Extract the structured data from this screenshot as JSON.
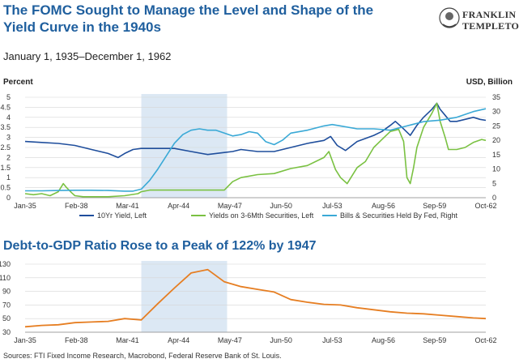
{
  "header": {
    "title": "The FOMC Sought to Manage the Level and Shape of the Yield Curve in the 1940s",
    "subtitle": "January 1, 1935–December 1, 1962",
    "logo_line1": "FRANKLIN",
    "logo_line2": "TEMPLETON"
  },
  "footer": {
    "sources": "Sources: FTI Fixed Income Research, Macrobond, Federal Reserve Bank of St. Louis."
  },
  "chart_data": [
    {
      "type": "line",
      "ylabel": "Percent",
      "y2label": "USD, Billion",
      "x_tick_labels": [
        "Jan-35",
        "Feb-38",
        "Mar-41",
        "Apr-44",
        "May-47",
        "Jun-50",
        "Jul-53",
        "Aug-56",
        "Sep-59",
        "Oct-62"
      ],
      "ylim": [
        0,
        5
      ],
      "y_ticks": [
        "0",
        "0.5",
        "1",
        "1.5",
        "2",
        "2.5",
        "3",
        "3.5",
        "4",
        "4.5",
        "5"
      ],
      "y2lim": [
        0,
        35
      ],
      "y2_ticks": [
        "0",
        "5",
        "10",
        "15",
        "20",
        "25",
        "30",
        "35"
      ],
      "grid": true,
      "shaded_period": [
        "1942-01",
        "1947-03"
      ],
      "legend_position": "bottom",
      "series": [
        {
          "name": "10Yr Yield, Left",
          "axis": "left",
          "color": "#1f4e9c",
          "x": [
            1935.0,
            1936.0,
            1937.0,
            1938.0,
            1939.0,
            1940.0,
            1940.6,
            1941.0,
            1941.5,
            1942.0,
            1943.0,
            1944.0,
            1945.0,
            1946.0,
            1946.5,
            1947.0,
            1947.5,
            1948.0,
            1949.0,
            1950.0,
            1951.0,
            1951.5,
            1952.0,
            1953.0,
            1953.4,
            1953.8,
            1954.3,
            1955.0,
            1956.0,
            1956.5,
            1957.0,
            1957.3,
            1957.7,
            1958.2,
            1958.6,
            1959.0,
            1959.5,
            1959.8,
            1960.0,
            1960.3,
            1960.6,
            1961.0,
            1961.5,
            1962.0,
            1962.4,
            1962.75
          ],
          "values": [
            2.8,
            2.75,
            2.7,
            2.6,
            2.4,
            2.2,
            2.0,
            2.2,
            2.4,
            2.45,
            2.45,
            2.45,
            2.3,
            2.15,
            2.2,
            2.25,
            2.3,
            2.4,
            2.3,
            2.3,
            2.5,
            2.6,
            2.7,
            2.85,
            3.05,
            2.6,
            2.35,
            2.8,
            3.1,
            3.3,
            3.6,
            3.8,
            3.5,
            3.1,
            3.6,
            4.0,
            4.4,
            4.7,
            4.4,
            4.1,
            3.8,
            3.8,
            3.9,
            4.0,
            3.9,
            3.85
          ]
        },
        {
          "name": "Yields on 3-6Mth Securities, Left",
          "axis": "left",
          "color": "#7ac142",
          "x": [
            1935.0,
            1935.5,
            1936.0,
            1936.5,
            1937.0,
            1937.3,
            1937.5,
            1937.8,
            1938.0,
            1938.5,
            1939.0,
            1940.0,
            1941.0,
            1941.8,
            1942.0,
            1942.5,
            1943.0,
            1944.0,
            1945.0,
            1946.0,
            1947.0,
            1947.5,
            1948.0,
            1949.0,
            1950.0,
            1951.0,
            1952.0,
            1953.0,
            1953.3,
            1953.7,
            1954.0,
            1954.4,
            1955.0,
            1955.5,
            1956.0,
            1956.5,
            1957.0,
            1957.5,
            1957.8,
            1958.0,
            1958.2,
            1958.4,
            1958.6,
            1959.0,
            1959.5,
            1959.8,
            1960.0,
            1960.3,
            1960.5,
            1961.0,
            1961.5,
            1962.0,
            1962.5,
            1962.75
          ],
          "values": [
            0.2,
            0.15,
            0.2,
            0.1,
            0.3,
            0.7,
            0.5,
            0.25,
            0.1,
            0.05,
            0.05,
            0.05,
            0.1,
            0.2,
            0.3,
            0.38,
            0.38,
            0.38,
            0.38,
            0.38,
            0.38,
            0.8,
            1.0,
            1.15,
            1.2,
            1.45,
            1.6,
            2.0,
            2.3,
            1.4,
            1.0,
            0.7,
            1.5,
            1.8,
            2.5,
            2.9,
            3.3,
            3.4,
            2.8,
            1.0,
            0.7,
            1.5,
            2.5,
            3.5,
            4.2,
            4.7,
            3.8,
            3.0,
            2.4,
            2.4,
            2.5,
            2.75,
            2.9,
            2.85
          ]
        },
        {
          "name": "Bills & Securities Held By Fed, Right",
          "axis": "right",
          "color": "#3aa9d6",
          "x": [
            1935.0,
            1936.0,
            1937.0,
            1938.0,
            1939.0,
            1940.0,
            1941.0,
            1941.5,
            1942.0,
            1942.5,
            1943.0,
            1943.5,
            1944.0,
            1944.5,
            1945.0,
            1945.5,
            1946.0,
            1946.5,
            1947.0,
            1947.5,
            1948.0,
            1948.5,
            1949.0,
            1949.5,
            1950.0,
            1950.5,
            1951.0,
            1952.0,
            1953.0,
            1953.5,
            1954.0,
            1955.0,
            1956.0,
            1957.0,
            1958.0,
            1959.0,
            1960.0,
            1961.0,
            1962.0,
            1962.75
          ],
          "values": [
            2.4,
            2.4,
            2.5,
            2.6,
            2.6,
            2.5,
            2.3,
            2.3,
            3.0,
            6.0,
            10.0,
            14.5,
            19.0,
            22.0,
            23.5,
            24.0,
            23.5,
            23.5,
            22.5,
            21.5,
            22.0,
            23.0,
            22.5,
            19.5,
            18.5,
            20.0,
            22.5,
            23.5,
            25.0,
            25.5,
            25.0,
            24.0,
            24.0,
            23.5,
            25.0,
            26.5,
            27.0,
            28.0,
            30.0,
            31.0
          ]
        }
      ]
    },
    {
      "type": "line",
      "title": "Debt-to-GDP Ratio Rose to a Peak of 122% by 1947",
      "x_tick_labels": [
        "Jan-35",
        "Feb-38",
        "Mar-41",
        "Apr-44",
        "May-47",
        "Jun-50",
        "Jul-53",
        "Aug-56",
        "Sep-59",
        "Oct-62"
      ],
      "ylim": [
        30,
        130
      ],
      "y_ticks": [
        "30",
        "50",
        "70",
        "90",
        "110",
        "130"
      ],
      "grid": true,
      "shaded_period": [
        "1942-01",
        "1947-03"
      ],
      "series": [
        {
          "name": "Debt-to-GDP",
          "color": "#e67e22",
          "x": [
            1935.0,
            1936.0,
            1937.0,
            1938.0,
            1939.0,
            1940.0,
            1941.0,
            1942.0,
            1943.0,
            1944.0,
            1945.0,
            1946.0,
            1947.0,
            1948.0,
            1949.0,
            1950.0,
            1951.0,
            1952.0,
            1953.0,
            1954.0,
            1955.0,
            1956.0,
            1957.0,
            1958.0,
            1959.0,
            1960.0,
            1961.0,
            1962.0,
            1962.75
          ],
          "values": [
            38,
            40,
            41,
            44,
            45,
            46,
            50,
            48,
            72,
            95,
            117,
            122,
            104,
            97,
            93,
            89,
            78,
            74,
            71,
            70,
            66,
            63,
            60,
            58,
            57,
            55,
            53,
            51,
            50
          ]
        }
      ]
    }
  ]
}
